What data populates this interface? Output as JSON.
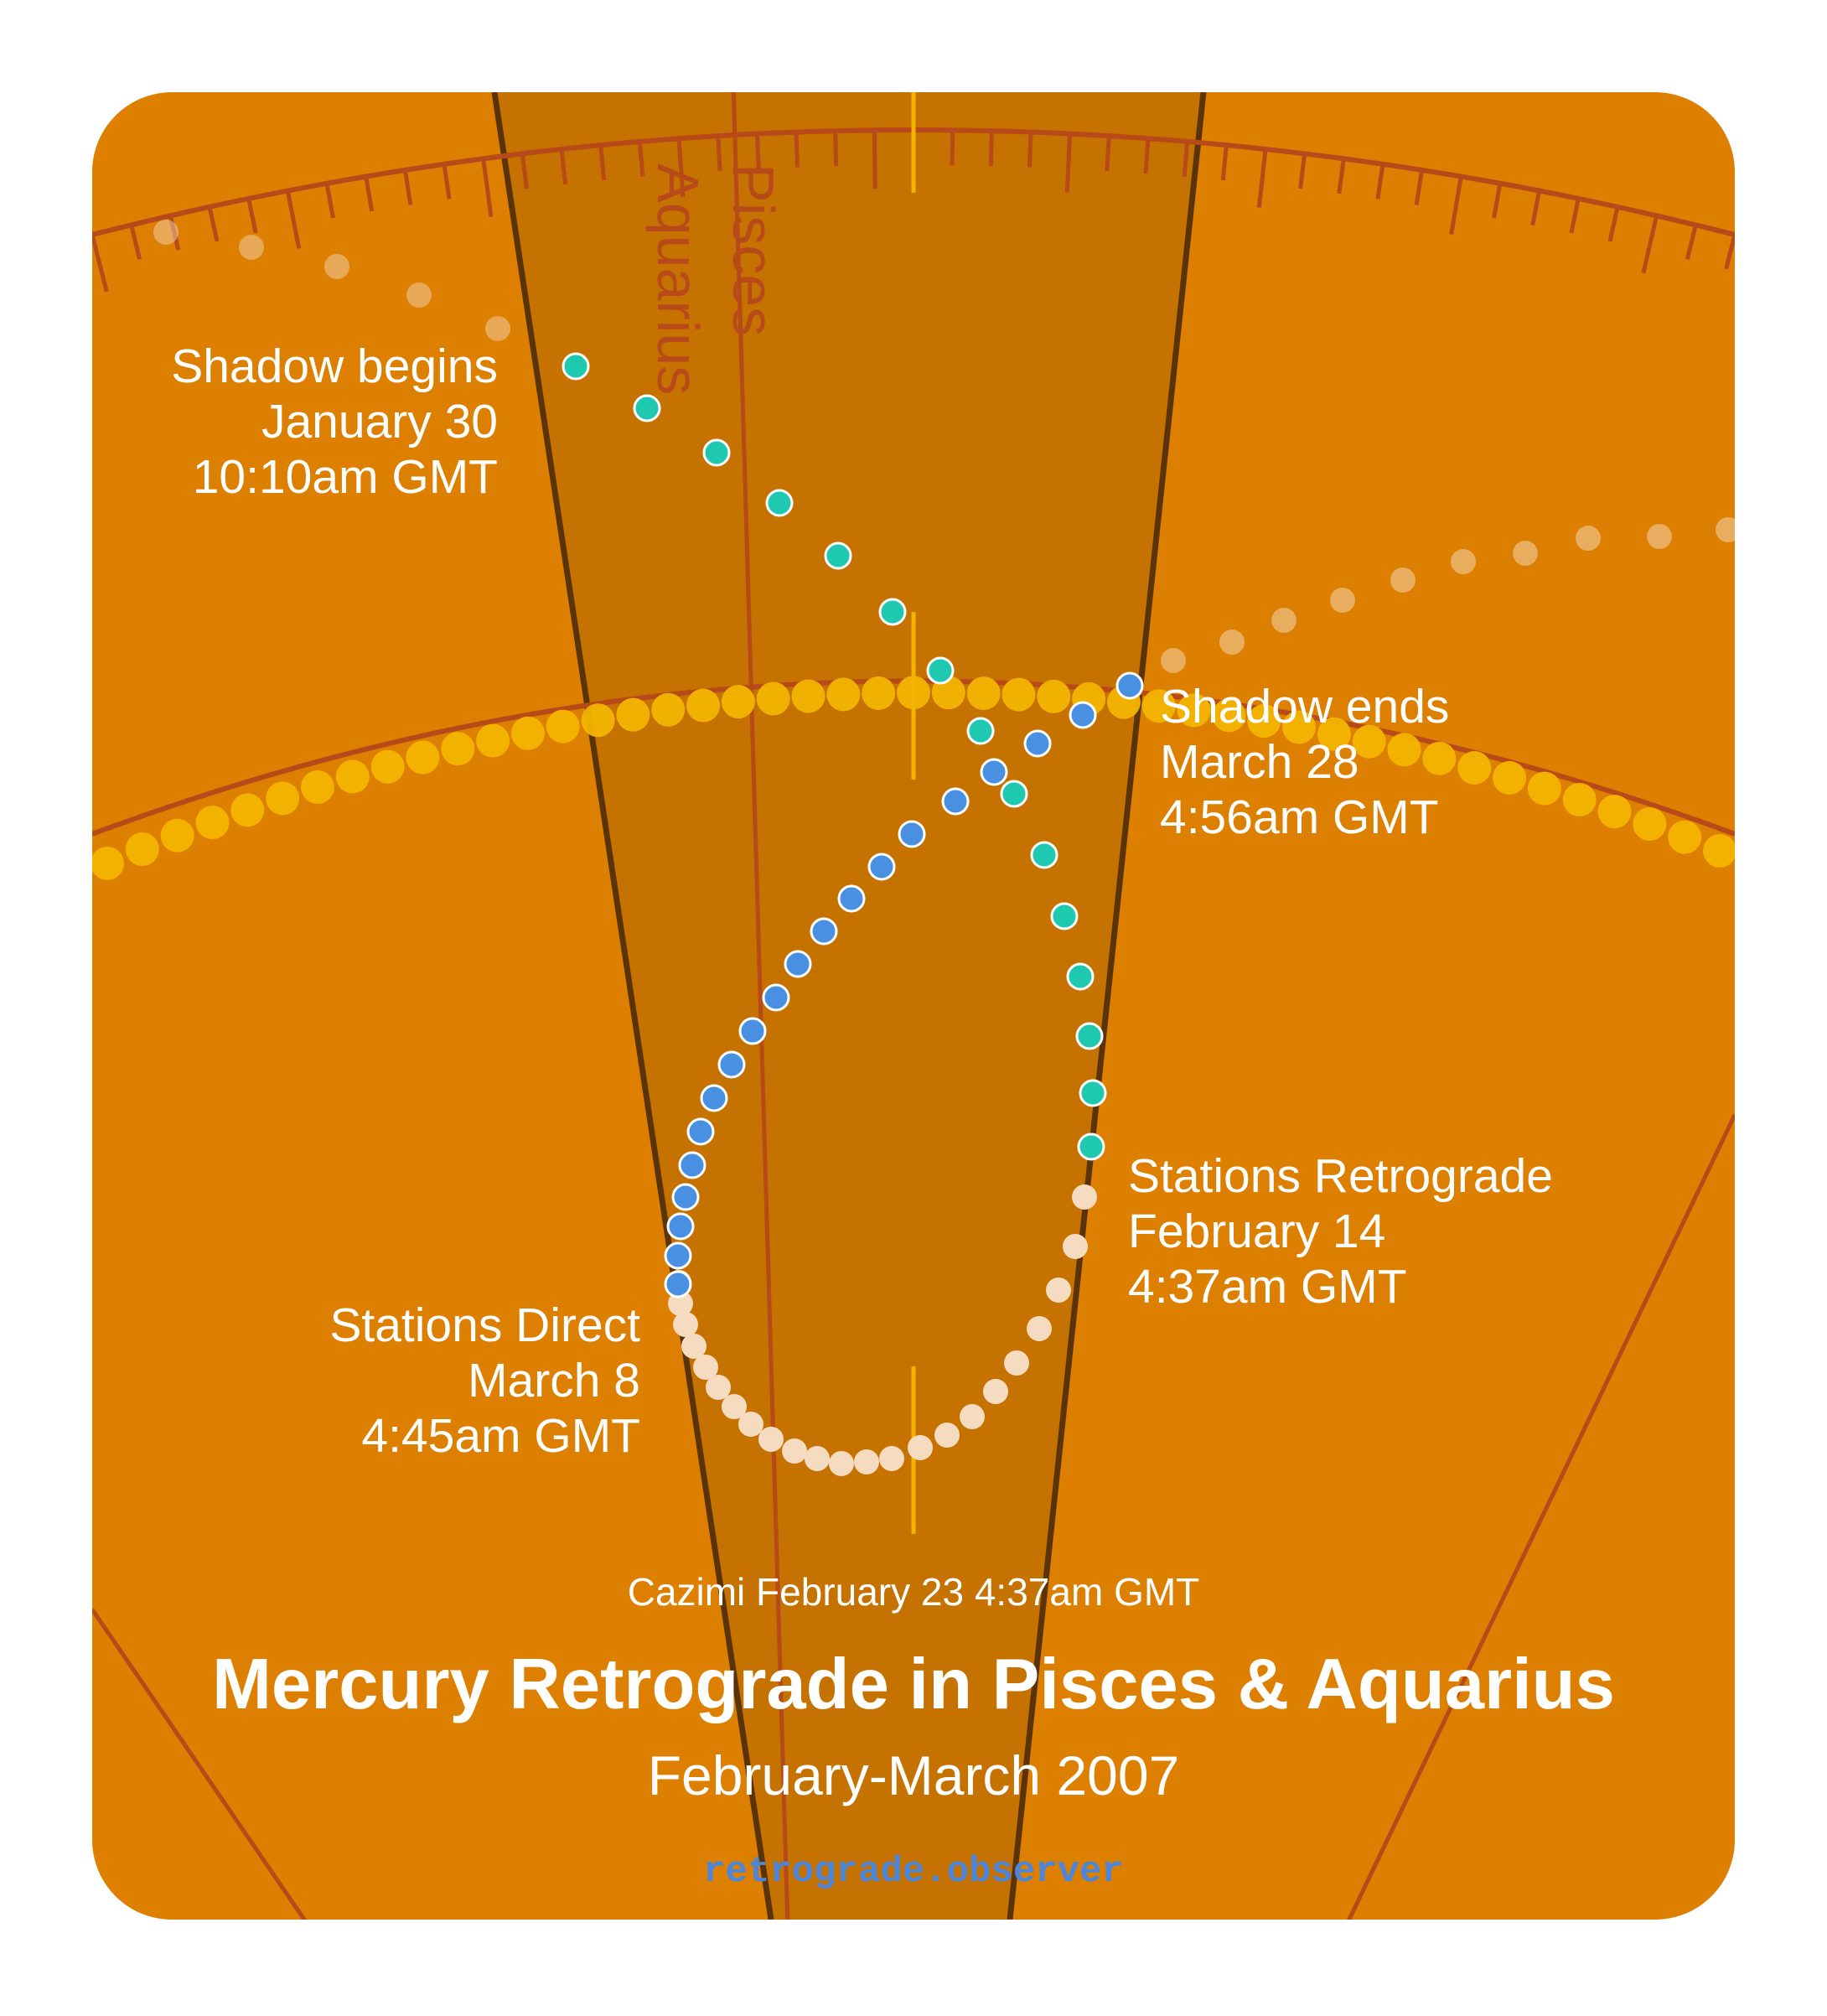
{
  "diagram": {
    "title": "Mercury Retrograde in Pisces & Aquarius",
    "subtitle": "February-March 2007",
    "website": "retrograde.observer",
    "cazimi": "Cazimi February 23 4:37am GMT",
    "signs": [
      "Aquarius",
      "Pisces"
    ],
    "events": {
      "shadow_begins": {
        "label": "Shadow begins",
        "date": "January 30",
        "time": "10:10am GMT"
      },
      "shadow_ends": {
        "label": "Shadow ends",
        "date": "March 28",
        "time": "4:56am GMT"
      },
      "stations_retrograde": {
        "label": "Stations Retrograde",
        "date": "February 14",
        "time": "4:37am GMT"
      },
      "stations_direct": {
        "label": "Stations Direct",
        "date": "March 8",
        "time": "4:45am GMT"
      }
    },
    "colors": {
      "background": "#dd7f00",
      "sign_band": "#c57200",
      "boundary": "#5a3408",
      "tick": "#b84a1a",
      "ecliptic_path": "#f3b400",
      "pre_shadow": "#1fc9b0",
      "retrograde": "#f5dcc0",
      "post_shadow": "#4a90e2"
    }
  }
}
